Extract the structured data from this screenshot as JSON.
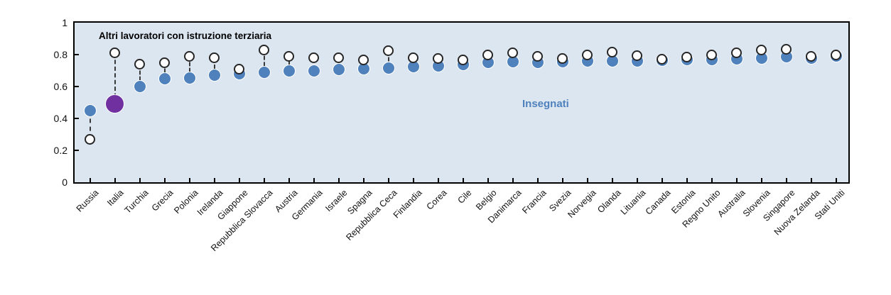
{
  "chart_data": {
    "type": "scatter",
    "title": "",
    "categories": [
      "Russia",
      "Italia",
      "Turchia",
      "Grecia",
      "Polonia",
      "Irelanda",
      "Giappone",
      "Repubblica Slovacca",
      "Austria",
      "Germania",
      "Israele",
      "Spagna",
      "Repubblica Ceca",
      "Finlandia",
      "Corea",
      "Cile",
      "Belgio",
      "Danimarca",
      "Francia",
      "Svezia",
      "Norvegia",
      "Olanda",
      "Lituania",
      "Canada",
      "Estonia",
      "Regno Unito",
      "Australia",
      "Slovenia",
      "Singapore",
      "Nuova Zelanda",
      "Stati Uniti"
    ],
    "series": [
      {
        "name": "Insegnati",
        "marker": "filled-circle",
        "color": "#4f81bd",
        "values": [
          0.45,
          0.49,
          0.6,
          0.65,
          0.655,
          0.67,
          0.68,
          0.69,
          0.7,
          0.7,
          0.705,
          0.71,
          0.715,
          0.725,
          0.73,
          0.74,
          0.75,
          0.755,
          0.75,
          0.755,
          0.76,
          0.76,
          0.76,
          0.765,
          0.77,
          0.77,
          0.775,
          0.78,
          0.785,
          0.78,
          0.79
        ]
      },
      {
        "name": "Altri lavoratori con istruzione terziaria",
        "marker": "open-circle",
        "color": "#ffffff",
        "outline_color": "#262626",
        "values": [
          0.27,
          0.81,
          0.74,
          0.75,
          0.79,
          0.78,
          0.71,
          0.83,
          0.79,
          0.78,
          0.78,
          0.765,
          0.825,
          0.78,
          0.775,
          0.765,
          0.8,
          0.81,
          0.79,
          0.775,
          0.8,
          0.815,
          0.795,
          0.77,
          0.785,
          0.8,
          0.81,
          0.83,
          0.835,
          0.79,
          0.8
        ]
      }
    ],
    "highlight": {
      "category": "Italia",
      "color": "#7030a0"
    },
    "ylim": [
      0,
      1
    ],
    "y_ticks": [
      "0",
      "0.2",
      "0.4",
      "0.6",
      "0.8",
      "1"
    ],
    "y_tick_values": [
      0,
      0.2,
      0.4,
      0.6,
      0.8,
      1
    ],
    "grid": "off",
    "legend_position": "in-plot-annotations",
    "plot_background": "#dce6f1",
    "border_color": "#000000",
    "connector_style": "dashed",
    "annotations": [
      {
        "text": "Altri lavoratori con istruzione terziaria",
        "color": "#000000",
        "bold": true
      },
      {
        "text": "Insegnati",
        "color": "#4f81bd",
        "bold": true
      }
    ]
  }
}
